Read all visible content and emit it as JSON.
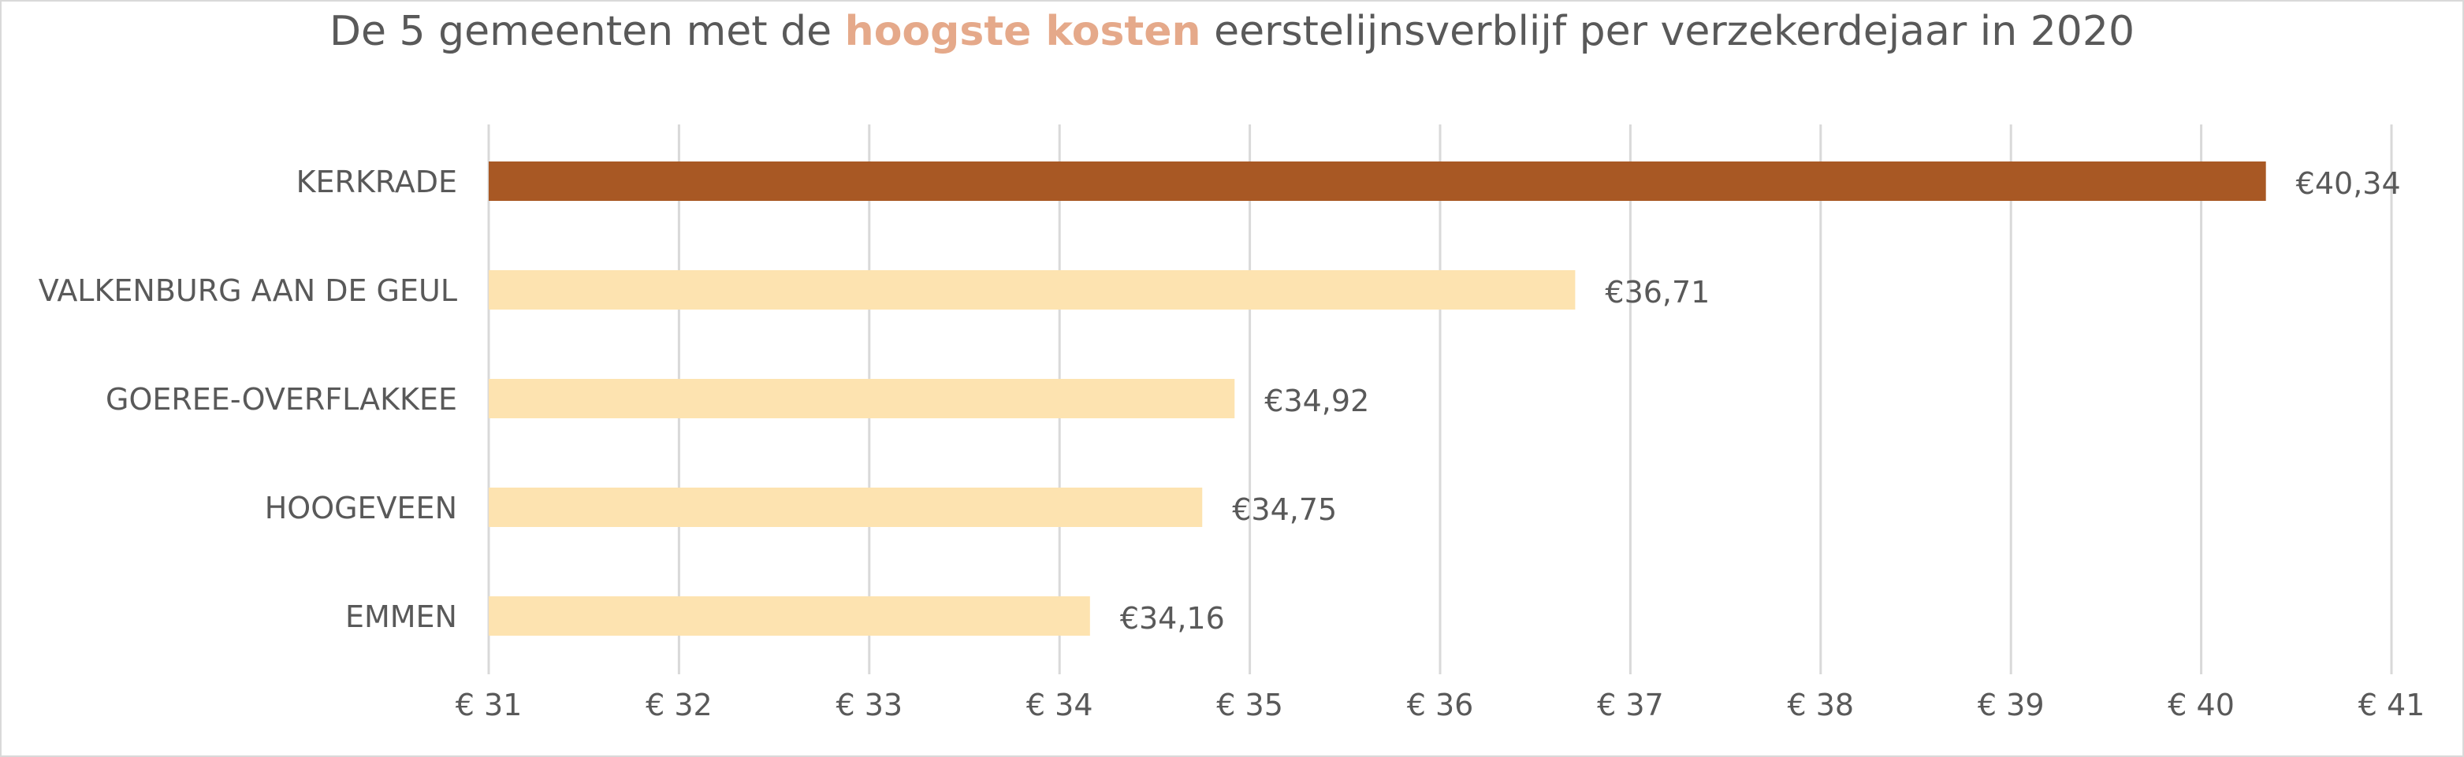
{
  "title": {
    "prefix": "De 5 gemeenten met de ",
    "highlight": "hoogste kosten",
    "suffix": " eerstelijnsverblijf per verzekerdejaar in 2020"
  },
  "colors": {
    "highlight_bar": "#a85824",
    "default_bar": "#fde3b0",
    "title_highlight": "#e5a98a",
    "text": "#595959",
    "grid": "#d9d9d9"
  },
  "chart_data": {
    "type": "bar",
    "orientation": "horizontal",
    "title": "De 5 gemeenten met de hoogste kosten eerstelijnsverblijf per verzekerdejaar in 2020",
    "categories": [
      "KERKRADE",
      "VALKENBURG AAN DE GEUL",
      "GOEREE-OVERFLAKKEE",
      "HOOGEVEEN",
      "EMMEN"
    ],
    "values": [
      40.34,
      36.71,
      34.92,
      34.75,
      34.16
    ],
    "data_labels": [
      "€40,34",
      "€36,71",
      "€34,92",
      "€34,75",
      "€34,16"
    ],
    "highlighted_index": 0,
    "xlim": [
      31,
      41
    ],
    "xticks": [
      31,
      32,
      33,
      34,
      35,
      36,
      37,
      38,
      39,
      40,
      41
    ],
    "xtick_labels": [
      "€ 31",
      "€ 32",
      "€ 33",
      "€ 34",
      "€ 35",
      "€ 36",
      "€ 37",
      "€ 38",
      "€ 39",
      "€ 40",
      "€ 41"
    ],
    "xlabel": "",
    "ylabel": "",
    "grid": "vertical",
    "legend": "none"
  }
}
